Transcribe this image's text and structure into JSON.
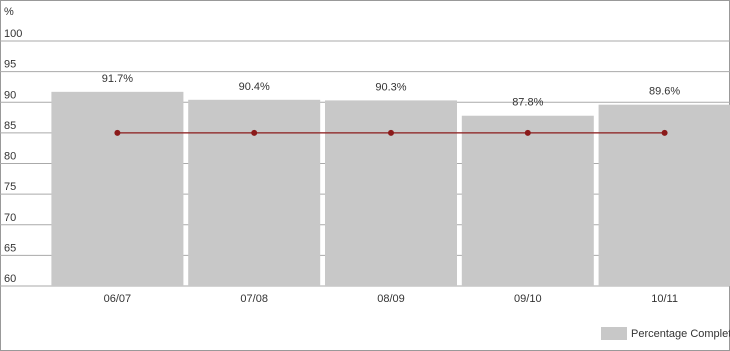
{
  "chart_data": {
    "type": "bar",
    "y_label": "%",
    "categories": [
      "06/07",
      "07/08",
      "08/09",
      "09/10",
      "10/11"
    ],
    "series": [
      {
        "type": "bar",
        "name": "Percentage Completed",
        "color": "#c8c8c8",
        "values": [
          91.7,
          90.4,
          90.3,
          87.8,
          89.6
        ],
        "value_labels": [
          "91.7%",
          "90.4%",
          "90.3%",
          "87.8%",
          "89.6%"
        ]
      },
      {
        "type": "line",
        "color": "#8b1a1a",
        "values": [
          85,
          85,
          85,
          85,
          85
        ]
      }
    ],
    "ylim": [
      60,
      100
    ],
    "yticks": [
      60,
      65,
      70,
      75,
      80,
      85,
      90,
      95,
      100
    ],
    "grid": true,
    "legend": "bottom-right"
  }
}
